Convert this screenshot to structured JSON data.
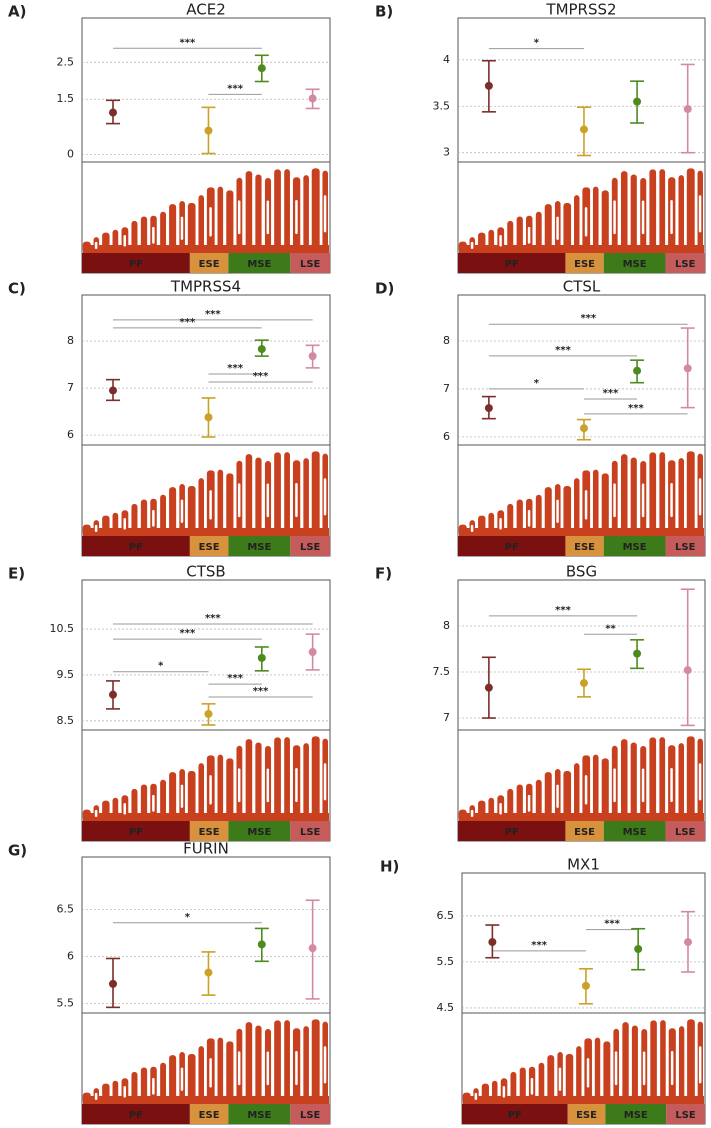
{
  "chart_data": [
    {
      "type": "errorbar",
      "panel": "A)",
      "title": "ACE2",
      "categories": [
        "PF",
        "ESE",
        "MSE",
        "LSE"
      ],
      "values": [
        1.14,
        0.65,
        2.34,
        1.52
      ],
      "upper": [
        1.47,
        1.28,
        2.69,
        1.77
      ],
      "lower": [
        0.84,
        0.03,
        1.98,
        1.25
      ],
      "colors": [
        "#7b2e2a",
        "#c9a227",
        "#4d8b1f",
        "#d48a9e"
      ],
      "band_colors": [
        "#7a1010",
        "#d8913c",
        "#3d7a1a",
        "#c55b5b"
      ],
      "ylim": [
        -0.2,
        3.7
      ],
      "yticks": [
        0,
        1.5,
        2.5
      ],
      "grid": true,
      "comparisons": [
        {
          "groups": [
            "PF",
            "MSE"
          ],
          "y": 2.88,
          "label": "***"
        },
        {
          "groups": [
            "ESE",
            "MSE"
          ],
          "y": 1.63,
          "label": "***"
        }
      ]
    },
    {
      "type": "errorbar",
      "panel": "B)",
      "title": "TMPRSS2",
      "categories": [
        "PF",
        "ESE",
        "MSE",
        "LSE"
      ],
      "values": [
        3.72,
        3.25,
        3.55,
        3.47
      ],
      "upper": [
        3.99,
        3.49,
        3.77,
        3.95
      ],
      "lower": [
        3.44,
        2.97,
        3.32,
        3.0
      ],
      "colors": [
        "#7b2e2a",
        "#c9a227",
        "#4d8b1f",
        "#d48a9e"
      ],
      "band_colors": [
        "#7a1010",
        "#d8913c",
        "#3d7a1a",
        "#c55b5b"
      ],
      "ylim": [
        2.9,
        4.45
      ],
      "yticks": [
        3,
        3.5,
        4
      ],
      "grid": true,
      "comparisons": [
        {
          "groups": [
            "PF",
            "ESE"
          ],
          "y": 4.12,
          "label": "*"
        }
      ]
    },
    {
      "type": "errorbar",
      "panel": "C)",
      "title": "TMPRSS4",
      "categories": [
        "PF",
        "ESE",
        "MSE",
        "LSE"
      ],
      "values": [
        6.95,
        6.38,
        7.83,
        7.68
      ],
      "upper": [
        7.18,
        6.79,
        8.02,
        7.91
      ],
      "lower": [
        6.74,
        5.96,
        7.68,
        7.43
      ],
      "colors": [
        "#7b2e2a",
        "#c9a227",
        "#4d8b1f",
        "#d48a9e"
      ],
      "band_colors": [
        "#7a1010",
        "#d8913c",
        "#3d7a1a",
        "#c55b5b"
      ],
      "ylim": [
        5.79,
        8.98
      ],
      "yticks": [
        6,
        7,
        8
      ],
      "grid": true,
      "comparisons": [
        {
          "groups": [
            "PF",
            "LSE"
          ],
          "y": 8.45,
          "label": "***"
        },
        {
          "groups": [
            "PF",
            "MSE"
          ],
          "y": 8.28,
          "label": "***"
        },
        {
          "groups": [
            "ESE",
            "MSE"
          ],
          "y": 7.3,
          "label": "***"
        },
        {
          "groups": [
            "ESE",
            "LSE"
          ],
          "y": 7.13,
          "label": "***"
        }
      ]
    },
    {
      "type": "errorbar",
      "panel": "D)",
      "title": "CTSL",
      "categories": [
        "PF",
        "ESE",
        "MSE",
        "LSE"
      ],
      "values": [
        6.6,
        6.18,
        7.38,
        7.43
      ],
      "upper": [
        6.84,
        6.36,
        7.6,
        8.27
      ],
      "lower": [
        6.38,
        5.94,
        7.13,
        6.61
      ],
      "colors": [
        "#7b2e2a",
        "#c9a227",
        "#4d8b1f",
        "#d48a9e"
      ],
      "band_colors": [
        "#7a1010",
        "#d8913c",
        "#3d7a1a",
        "#c55b5b"
      ],
      "ylim": [
        5.83,
        8.96
      ],
      "yticks": [
        6,
        7,
        8
      ],
      "grid": true,
      "comparisons": [
        {
          "groups": [
            "PF",
            "LSE"
          ],
          "y": 8.35,
          "label": "***"
        },
        {
          "groups": [
            "PF",
            "MSE"
          ],
          "y": 7.69,
          "label": "***"
        },
        {
          "groups": [
            "PF",
            "ESE"
          ],
          "y": 7.0,
          "label": "*"
        },
        {
          "groups": [
            "ESE",
            "MSE"
          ],
          "y": 6.79,
          "label": "***"
        },
        {
          "groups": [
            "ESE",
            "LSE"
          ],
          "y": 6.48,
          "label": "***"
        }
      ]
    },
    {
      "type": "errorbar",
      "panel": "E)",
      "title": "CTSB",
      "categories": [
        "PF",
        "ESE",
        "MSE",
        "LSE"
      ],
      "values": [
        9.07,
        8.65,
        9.87,
        10.0
      ],
      "upper": [
        9.37,
        8.87,
        10.11,
        10.39
      ],
      "lower": [
        8.76,
        8.41,
        9.59,
        9.61
      ],
      "colors": [
        "#7b2e2a",
        "#c9a227",
        "#4d8b1f",
        "#d48a9e"
      ],
      "band_colors": [
        "#7a1010",
        "#d8913c",
        "#3d7a1a",
        "#c55b5b"
      ],
      "ylim": [
        8.3,
        11.57
      ],
      "yticks": [
        8.5,
        9.5,
        10.5
      ],
      "grid": true,
      "comparisons": [
        {
          "groups": [
            "PF",
            "LSE"
          ],
          "y": 10.61,
          "label": "***"
        },
        {
          "groups": [
            "PF",
            "MSE"
          ],
          "y": 10.28,
          "label": "***"
        },
        {
          "groups": [
            "PF",
            "ESE"
          ],
          "y": 9.57,
          "label": "*"
        },
        {
          "groups": [
            "ESE",
            "MSE"
          ],
          "y": 9.3,
          "label": "***"
        },
        {
          "groups": [
            "ESE",
            "LSE"
          ],
          "y": 9.02,
          "label": "***"
        }
      ]
    },
    {
      "type": "errorbar",
      "panel": "F)",
      "title": "BSG",
      "categories": [
        "PF",
        "ESE",
        "MSE",
        "LSE"
      ],
      "values": [
        7.33,
        7.38,
        7.7,
        7.52
      ],
      "upper": [
        7.66,
        7.53,
        7.85,
        8.4
      ],
      "lower": [
        7.0,
        7.23,
        7.54,
        6.92
      ],
      "colors": [
        "#7b2e2a",
        "#c9a227",
        "#4d8b1f",
        "#d48a9e"
      ],
      "band_colors": [
        "#7a1010",
        "#d8913c",
        "#3d7a1a",
        "#c55b5b"
      ],
      "ylim": [
        6.87,
        8.5
      ],
      "yticks": [
        7,
        7.5,
        8
      ],
      "grid": true,
      "comparisons": [
        {
          "groups": [
            "PF",
            "MSE"
          ],
          "y": 8.11,
          "label": "***"
        },
        {
          "groups": [
            "ESE",
            "MSE"
          ],
          "y": 7.91,
          "label": "**"
        }
      ]
    },
    {
      "type": "errorbar",
      "panel": "G)",
      "title": "FURIN",
      "categories": [
        "PF",
        "ESE",
        "MSE",
        "LSE"
      ],
      "values": [
        5.71,
        5.83,
        6.13,
        6.09
      ],
      "upper": [
        5.98,
        6.05,
        6.3,
        6.6
      ],
      "lower": [
        5.46,
        5.59,
        5.95,
        5.55
      ],
      "colors": [
        "#7b2e2a",
        "#c9a227",
        "#4d8b1f",
        "#d48a9e"
      ],
      "band_colors": [
        "#7a1010",
        "#d8913c",
        "#3d7a1a",
        "#c55b5b"
      ],
      "ylim": [
        5.4,
        7.06
      ],
      "yticks": [
        5.5,
        6,
        6.5
      ],
      "grid": true,
      "comparisons": [
        {
          "groups": [
            "PF",
            "MSE"
          ],
          "y": 6.36,
          "label": "*"
        }
      ]
    },
    {
      "type": "errorbar",
      "panel": "H)",
      "title": "MX1",
      "categories": [
        "PF",
        "ESE",
        "MSE",
        "LSE"
      ],
      "values": [
        5.93,
        4.98,
        5.78,
        5.93
      ],
      "upper": [
        6.3,
        5.35,
        6.22,
        6.59
      ],
      "lower": [
        5.59,
        4.59,
        5.33,
        5.28
      ],
      "colors": [
        "#7b2e2a",
        "#c9a227",
        "#4d8b1f",
        "#d48a9e"
      ],
      "band_colors": [
        "#7a1010",
        "#d8913c",
        "#3d7a1a",
        "#c55b5b"
      ],
      "ylim": [
        4.39,
        7.43
      ],
      "yticks": [
        4.5,
        5.5,
        6.5
      ],
      "grid": true,
      "comparisons": [
        {
          "groups": [
            "PF",
            "ESE"
          ],
          "y": 5.74,
          "label": "***"
        },
        {
          "groups": [
            "ESE",
            "MSE"
          ],
          "y": 6.2,
          "label": "***"
        }
      ]
    }
  ]
}
